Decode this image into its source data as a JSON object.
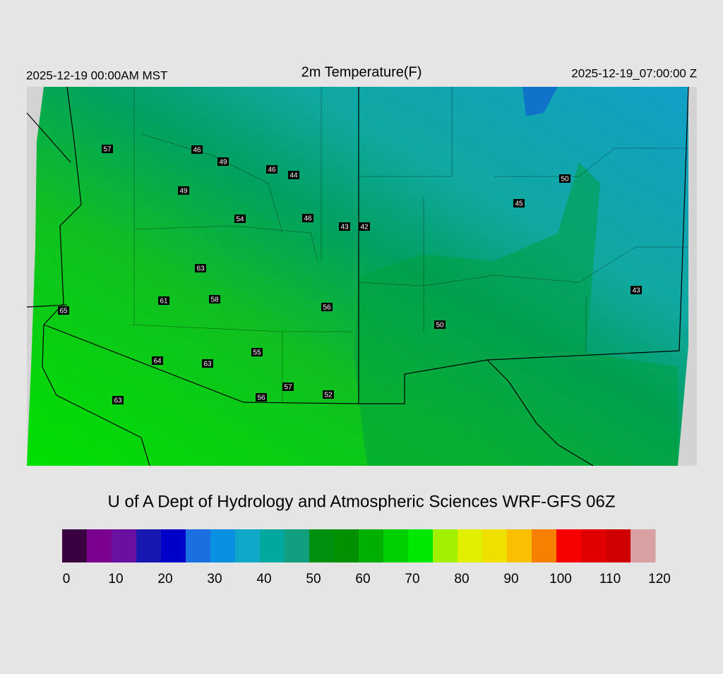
{
  "header": {
    "left": "2025-12-19 00:00AM MST",
    "title": "2m Temperature(F)",
    "right": "2025-12-19_07:00:00 Z"
  },
  "stations": [
    "57",
    "46",
    "49",
    "46",
    "44",
    "49",
    "54",
    "46",
    "43",
    "42",
    "50",
    "45",
    "63",
    "61",
    "58",
    "56",
    "50",
    "43",
    "65",
    "55",
    "64",
    "63",
    "57",
    "56",
    "52",
    "63"
  ],
  "credit": "U of A Dept of Hydrology and Atmospheric Sciences WRF-GFS 06Z",
  "colorbar": {
    "range": [
      0,
      120
    ],
    "ticks": [
      0,
      10,
      20,
      30,
      40,
      50,
      60,
      70,
      80,
      90,
      100,
      110,
      120
    ],
    "colors": [
      "#3a0040",
      "#7a0090",
      "#6a10a0",
      "#1818b0",
      "#0000c8",
      "#1a70e0",
      "#0a90e0",
      "#10a8c8",
      "#00a8a0",
      "#10a080",
      "#009010",
      "#009000",
      "#00b000",
      "#00d000",
      "#00e800",
      "#a0f000",
      "#e0f000",
      "#f0e000",
      "#f8c000",
      "#f88000",
      "#f80000",
      "#e00000",
      "#d00000",
      "#d8a0a0"
    ]
  }
}
